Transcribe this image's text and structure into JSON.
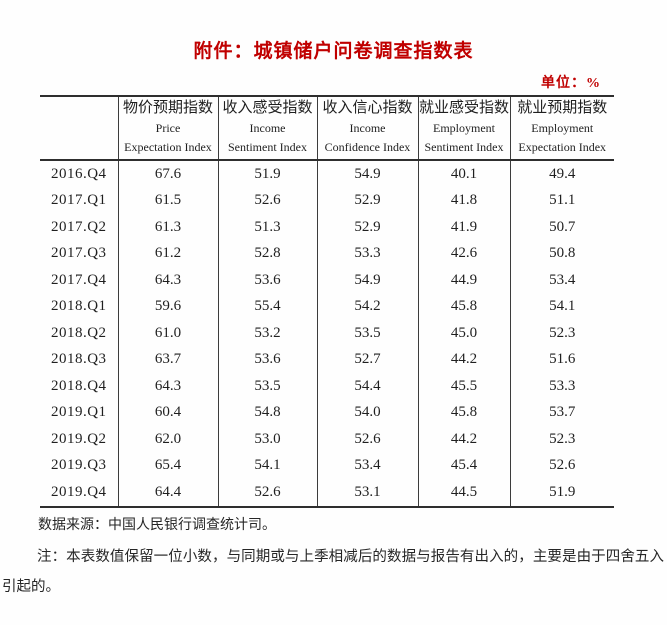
{
  "doc": {
    "title": "附件：城镇储户问卷调查指数表",
    "unit_label": "单位：%",
    "source": "数据来源：中国人民银行调查统计司。",
    "note": "注：本表数值保留一位小数，与同期或与上季相减后的数据与报告有出入的，主要是由于四舍五入引起的。",
    "accent_color": "#c00000",
    "text_color": "#1f1f1f"
  },
  "table": {
    "corner": "",
    "columns": [
      {
        "cn": "物价预期指数",
        "en1": "Price",
        "en2": "Expectation Index"
      },
      {
        "cn": "收入感受指数",
        "en1": "Income",
        "en2": "Sentiment Index"
      },
      {
        "cn": "收入信心指数",
        "en1": "Income",
        "en2": "Confidence Index"
      },
      {
        "cn": "就业感受指数",
        "en1": "Employment",
        "en2": "Sentiment Index"
      },
      {
        "cn": "就业预期指数",
        "en1": "Employment",
        "en2": "Expectation Index"
      }
    ],
    "rows": [
      {
        "period": "2016.Q4",
        "values": [
          "67.6",
          "51.9",
          "54.9",
          "40.1",
          "49.4"
        ]
      },
      {
        "period": "2017.Q1",
        "values": [
          "61.5",
          "52.6",
          "52.9",
          "41.8",
          "51.1"
        ]
      },
      {
        "period": "2017.Q2",
        "values": [
          "61.3",
          "51.3",
          "52.9",
          "41.9",
          "50.7"
        ]
      },
      {
        "period": "2017.Q3",
        "values": [
          "61.2",
          "52.8",
          "53.3",
          "42.6",
          "50.8"
        ]
      },
      {
        "period": "2017.Q4",
        "values": [
          "64.3",
          "53.6",
          "54.9",
          "44.9",
          "53.4"
        ]
      },
      {
        "period": "2018.Q1",
        "values": [
          "59.6",
          "55.4",
          "54.2",
          "45.8",
          "54.1"
        ]
      },
      {
        "period": "2018.Q2",
        "values": [
          "61.0",
          "53.2",
          "53.5",
          "45.0",
          "52.3"
        ]
      },
      {
        "period": "2018.Q3",
        "values": [
          "63.7",
          "53.6",
          "52.7",
          "44.2",
          "51.6"
        ]
      },
      {
        "period": "2018.Q4",
        "values": [
          "64.3",
          "53.5",
          "54.4",
          "45.5",
          "53.3"
        ]
      },
      {
        "period": "2019.Q1",
        "values": [
          "60.4",
          "54.8",
          "54.0",
          "45.8",
          "53.7"
        ]
      },
      {
        "period": "2019.Q2",
        "values": [
          "62.0",
          "53.0",
          "52.6",
          "44.2",
          "52.3"
        ]
      },
      {
        "period": "2019.Q3",
        "values": [
          "65.4",
          "54.1",
          "53.4",
          "45.4",
          "52.6"
        ]
      },
      {
        "period": "2019.Q4",
        "values": [
          "64.4",
          "52.6",
          "53.1",
          "44.5",
          "51.9"
        ]
      }
    ]
  }
}
